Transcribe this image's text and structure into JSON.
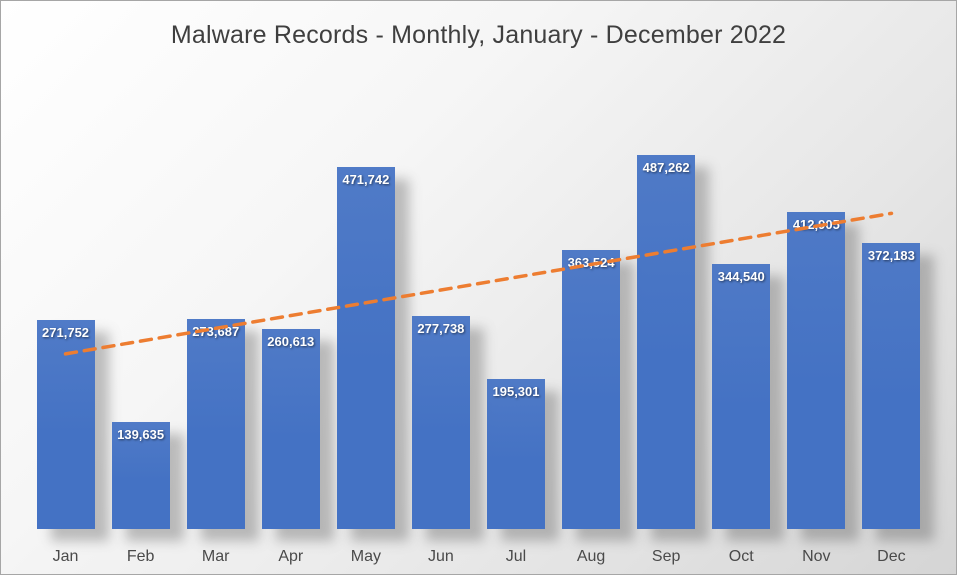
{
  "chart_data": {
    "type": "bar",
    "title": "Malware Records - Monthly, January - December 2022",
    "categories": [
      "Jan",
      "Feb",
      "Mar",
      "Apr",
      "May",
      "Jun",
      "Jul",
      "Aug",
      "Sep",
      "Oct",
      "Nov",
      "Dec"
    ],
    "values": [
      271752,
      139635,
      273687,
      260613,
      471742,
      277738,
      195301,
      363524,
      487262,
      344540,
      412905,
      372183
    ],
    "value_labels": [
      "271,752",
      "139,635",
      "273,687",
      "260,613",
      "471,742",
      "277,738",
      "195,301",
      "363,524",
      "487,262",
      "344,540",
      "412,905",
      "372,183"
    ],
    "xlabel": "",
    "ylabel": "",
    "ylim": [
      0,
      500000
    ],
    "grid": false,
    "legend": false,
    "bar_color": "#4472C4",
    "label_color": "#FFFFFF",
    "trendline": {
      "type": "linear",
      "style": "dashed",
      "color": "#ED7D31",
      "start_value": 228000,
      "end_value": 411000
    }
  }
}
